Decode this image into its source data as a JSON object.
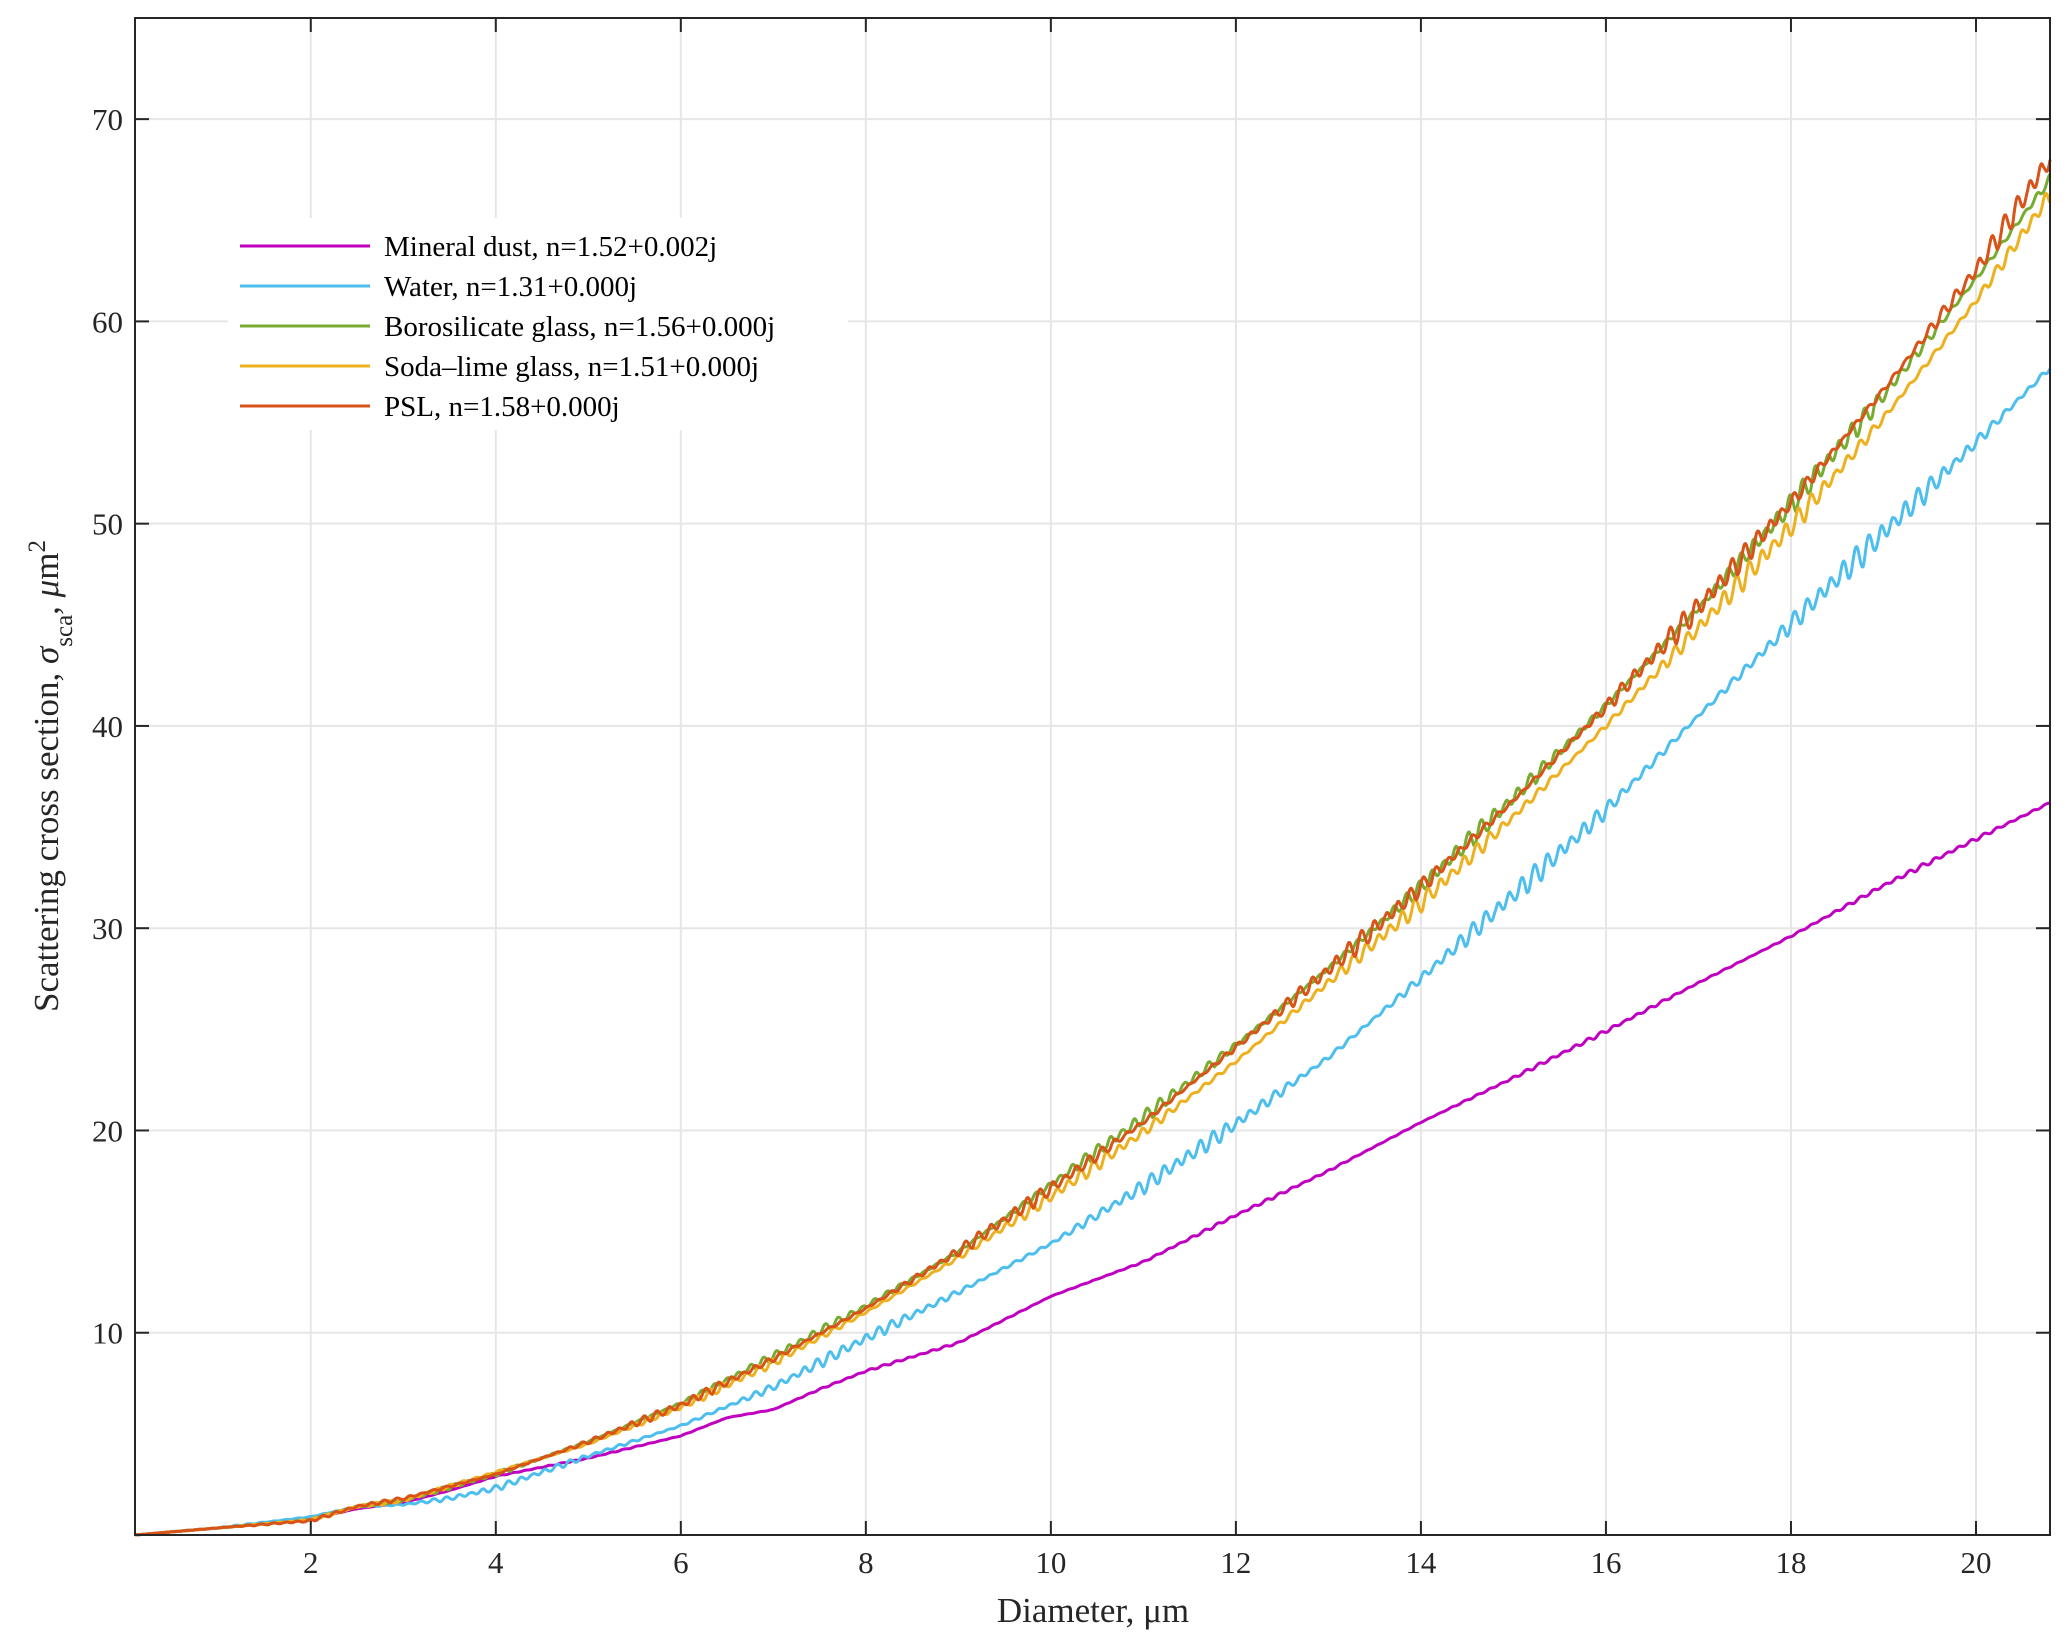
{
  "chart_data": {
    "type": "line",
    "title": "",
    "xlabel": "Diameter, μm",
    "ylabel": "Scattering cross section, σ_sca, μm^2",
    "ylabel_parts": {
      "main": "Scattering cross section, ",
      "sigma": "σ",
      "sub": "sca",
      "mid": ", ",
      "mu": "μ",
      "m": "m",
      "sup": "2"
    },
    "xlim": [
      0.1,
      20.8
    ],
    "ylim": [
      0,
      75
    ],
    "x_ticks": [
      2,
      4,
      6,
      8,
      10,
      12,
      14,
      16,
      18,
      20
    ],
    "y_ticks": [
      10,
      20,
      30,
      40,
      50,
      60,
      70
    ],
    "grid": true,
    "legend_position": "top-left",
    "series": [
      {
        "name": "Mineral dust, n=1.52+0.002j",
        "color": "#c000c0",
        "ripple": 0.15,
        "points": [
          [
            0.1,
            0
          ],
          [
            1,
            0.35
          ],
          [
            2,
            0.8
          ],
          [
            2.5,
            1.3
          ],
          [
            3,
            1.6
          ],
          [
            3.5,
            2.2
          ],
          [
            4,
            2.9
          ],
          [
            5,
            3.8
          ],
          [
            6,
            4.9
          ],
          [
            6.5,
            5.8
          ],
          [
            7,
            6.2
          ],
          [
            7.5,
            7.2
          ],
          [
            8,
            8.1
          ],
          [
            9,
            9.5
          ],
          [
            10,
            11.8
          ],
          [
            11,
            13.5
          ],
          [
            12,
            15.8
          ],
          [
            13,
            18.0
          ],
          [
            14,
            20.4
          ],
          [
            15,
            22.6
          ],
          [
            16,
            24.9
          ],
          [
            17,
            27.3
          ],
          [
            18,
            29.6
          ],
          [
            19,
            32.1
          ],
          [
            20,
            34.4
          ],
          [
            20.8,
            36.2
          ]
        ]
      },
      {
        "name": "Water, n=1.31+0.000j",
        "color": "#4dbeee",
        "ripple": 0.9,
        "points": [
          [
            0.1,
            0
          ],
          [
            1,
            0.35
          ],
          [
            2,
            0.9
          ],
          [
            2.5,
            1.4
          ],
          [
            3,
            1.5
          ],
          [
            3.5,
            1.8
          ],
          [
            4,
            2.3
          ],
          [
            5,
            3.9
          ],
          [
            6,
            5.4
          ],
          [
            7,
            7.3
          ],
          [
            8,
            9.7
          ],
          [
            9,
            12.0
          ],
          [
            10,
            14.4
          ],
          [
            11,
            17.2
          ],
          [
            12,
            20.3
          ],
          [
            13,
            23.6
          ],
          [
            14,
            27.5
          ],
          [
            15,
            31.6
          ],
          [
            16,
            35.8
          ],
          [
            17,
            40.5
          ],
          [
            18,
            45.0
          ],
          [
            19,
            49.5
          ],
          [
            20,
            54.0
          ],
          [
            20.8,
            57.7
          ]
        ]
      },
      {
        "name": "Borosilicate glass, n=1.56+0.000j",
        "color": "#77ac30",
        "ripple": 0.8,
        "points": [
          [
            0.1,
            0
          ],
          [
            1,
            0.35
          ],
          [
            2,
            0.75
          ],
          [
            2.5,
            1.4
          ],
          [
            3,
            1.7
          ],
          [
            4,
            3.0
          ],
          [
            5,
            4.6
          ],
          [
            6,
            6.5
          ],
          [
            7,
            8.8
          ],
          [
            8,
            11.3
          ],
          [
            9,
            14.0
          ],
          [
            10,
            17.3
          ],
          [
            11,
            20.6
          ],
          [
            12,
            24.2
          ],
          [
            13,
            28.0
          ],
          [
            14,
            32.0
          ],
          [
            15,
            36.4
          ],
          [
            16,
            41.0
          ],
          [
            17,
            45.8
          ],
          [
            18,
            50.9
          ],
          [
            19,
            56.3
          ],
          [
            20,
            62.1
          ],
          [
            20.8,
            67.0
          ]
        ]
      },
      {
        "name": "Soda–lime glass, n=1.51+0.000j",
        "color": "#edb120",
        "ripple": 0.8,
        "points": [
          [
            0.1,
            0
          ],
          [
            1,
            0.35
          ],
          [
            2,
            0.75
          ],
          [
            2.5,
            1.4
          ],
          [
            3,
            1.7
          ],
          [
            4,
            3.1
          ],
          [
            5,
            4.5
          ],
          [
            6,
            6.3
          ],
          [
            7,
            8.5
          ],
          [
            8,
            11.0
          ],
          [
            9,
            13.7
          ],
          [
            10,
            16.7
          ],
          [
            11,
            19.9
          ],
          [
            12,
            23.4
          ],
          [
            13,
            27.3
          ],
          [
            14,
            31.2
          ],
          [
            15,
            35.5
          ],
          [
            16,
            40.0
          ],
          [
            17,
            44.8
          ],
          [
            18,
            49.8
          ],
          [
            19,
            55.2
          ],
          [
            20,
            61.0
          ],
          [
            20.8,
            66.2
          ]
        ]
      },
      {
        "name": "PSL, n=1.58+0.000j",
        "color": "#d95319",
        "ripple": 0.9,
        "points": [
          [
            0.1,
            0
          ],
          [
            1,
            0.35
          ],
          [
            2,
            0.7
          ],
          [
            2.5,
            1.4
          ],
          [
            3,
            1.8
          ],
          [
            4,
            3.0
          ],
          [
            5,
            4.6
          ],
          [
            6,
            6.4
          ],
          [
            7,
            8.7
          ],
          [
            8,
            11.2
          ],
          [
            9,
            14.0
          ],
          [
            10,
            17.1
          ],
          [
            11,
            20.4
          ],
          [
            12,
            24.1
          ],
          [
            13,
            27.9
          ],
          [
            14,
            32.0
          ],
          [
            15,
            36.3
          ],
          [
            16,
            40.9
          ],
          [
            17,
            45.8
          ],
          [
            18,
            51.0
          ],
          [
            19,
            56.6
          ],
          [
            20,
            62.5
          ],
          [
            20.8,
            68.0
          ]
        ]
      }
    ]
  }
}
